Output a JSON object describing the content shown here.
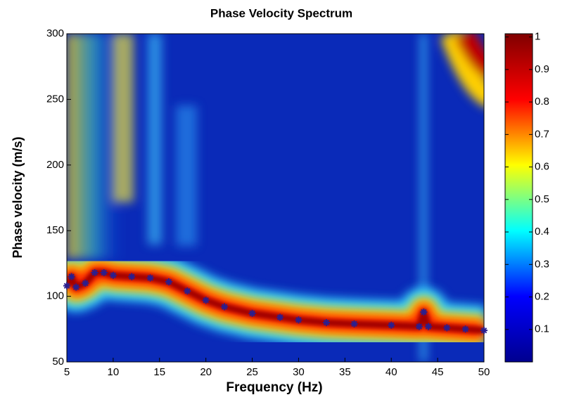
{
  "chart_data": {
    "type": "line",
    "title": "Phase Velocity Spectrum",
    "x_label": "Frequency (Hz)",
    "y_label": "Phase velocity (m/s)",
    "x": [
      5,
      5.5,
      6,
      7,
      8,
      9,
      10,
      12,
      14,
      16,
      18,
      20,
      22,
      25,
      28,
      30,
      33,
      36,
      40,
      43,
      43.5,
      44,
      46,
      48,
      50
    ],
    "series": [
      {
        "color": "#2a1f8f",
        "values": [
          108,
          115,
          107,
          110,
          118,
          118,
          116,
          115,
          114,
          111,
          104,
          97,
          92,
          87,
          84,
          82,
          80,
          79,
          78,
          77,
          88,
          77,
          76,
          75,
          74
        ]
      }
    ],
    "xlim": [
      5,
      50
    ],
    "xticks": [
      5,
      10,
      15,
      20,
      25,
      30,
      35,
      40,
      45,
      50
    ],
    "ylim": [
      50,
      300
    ],
    "yticks": [
      50,
      100,
      150,
      200,
      250,
      300
    ],
    "colorbar": {
      "colormap": "jet",
      "lim": [
        0,
        1.01
      ],
      "ticks": [
        0.1,
        0.2,
        0.3,
        0.4,
        0.5,
        0.6,
        0.7,
        0.8,
        0.9,
        1
      ]
    }
  }
}
